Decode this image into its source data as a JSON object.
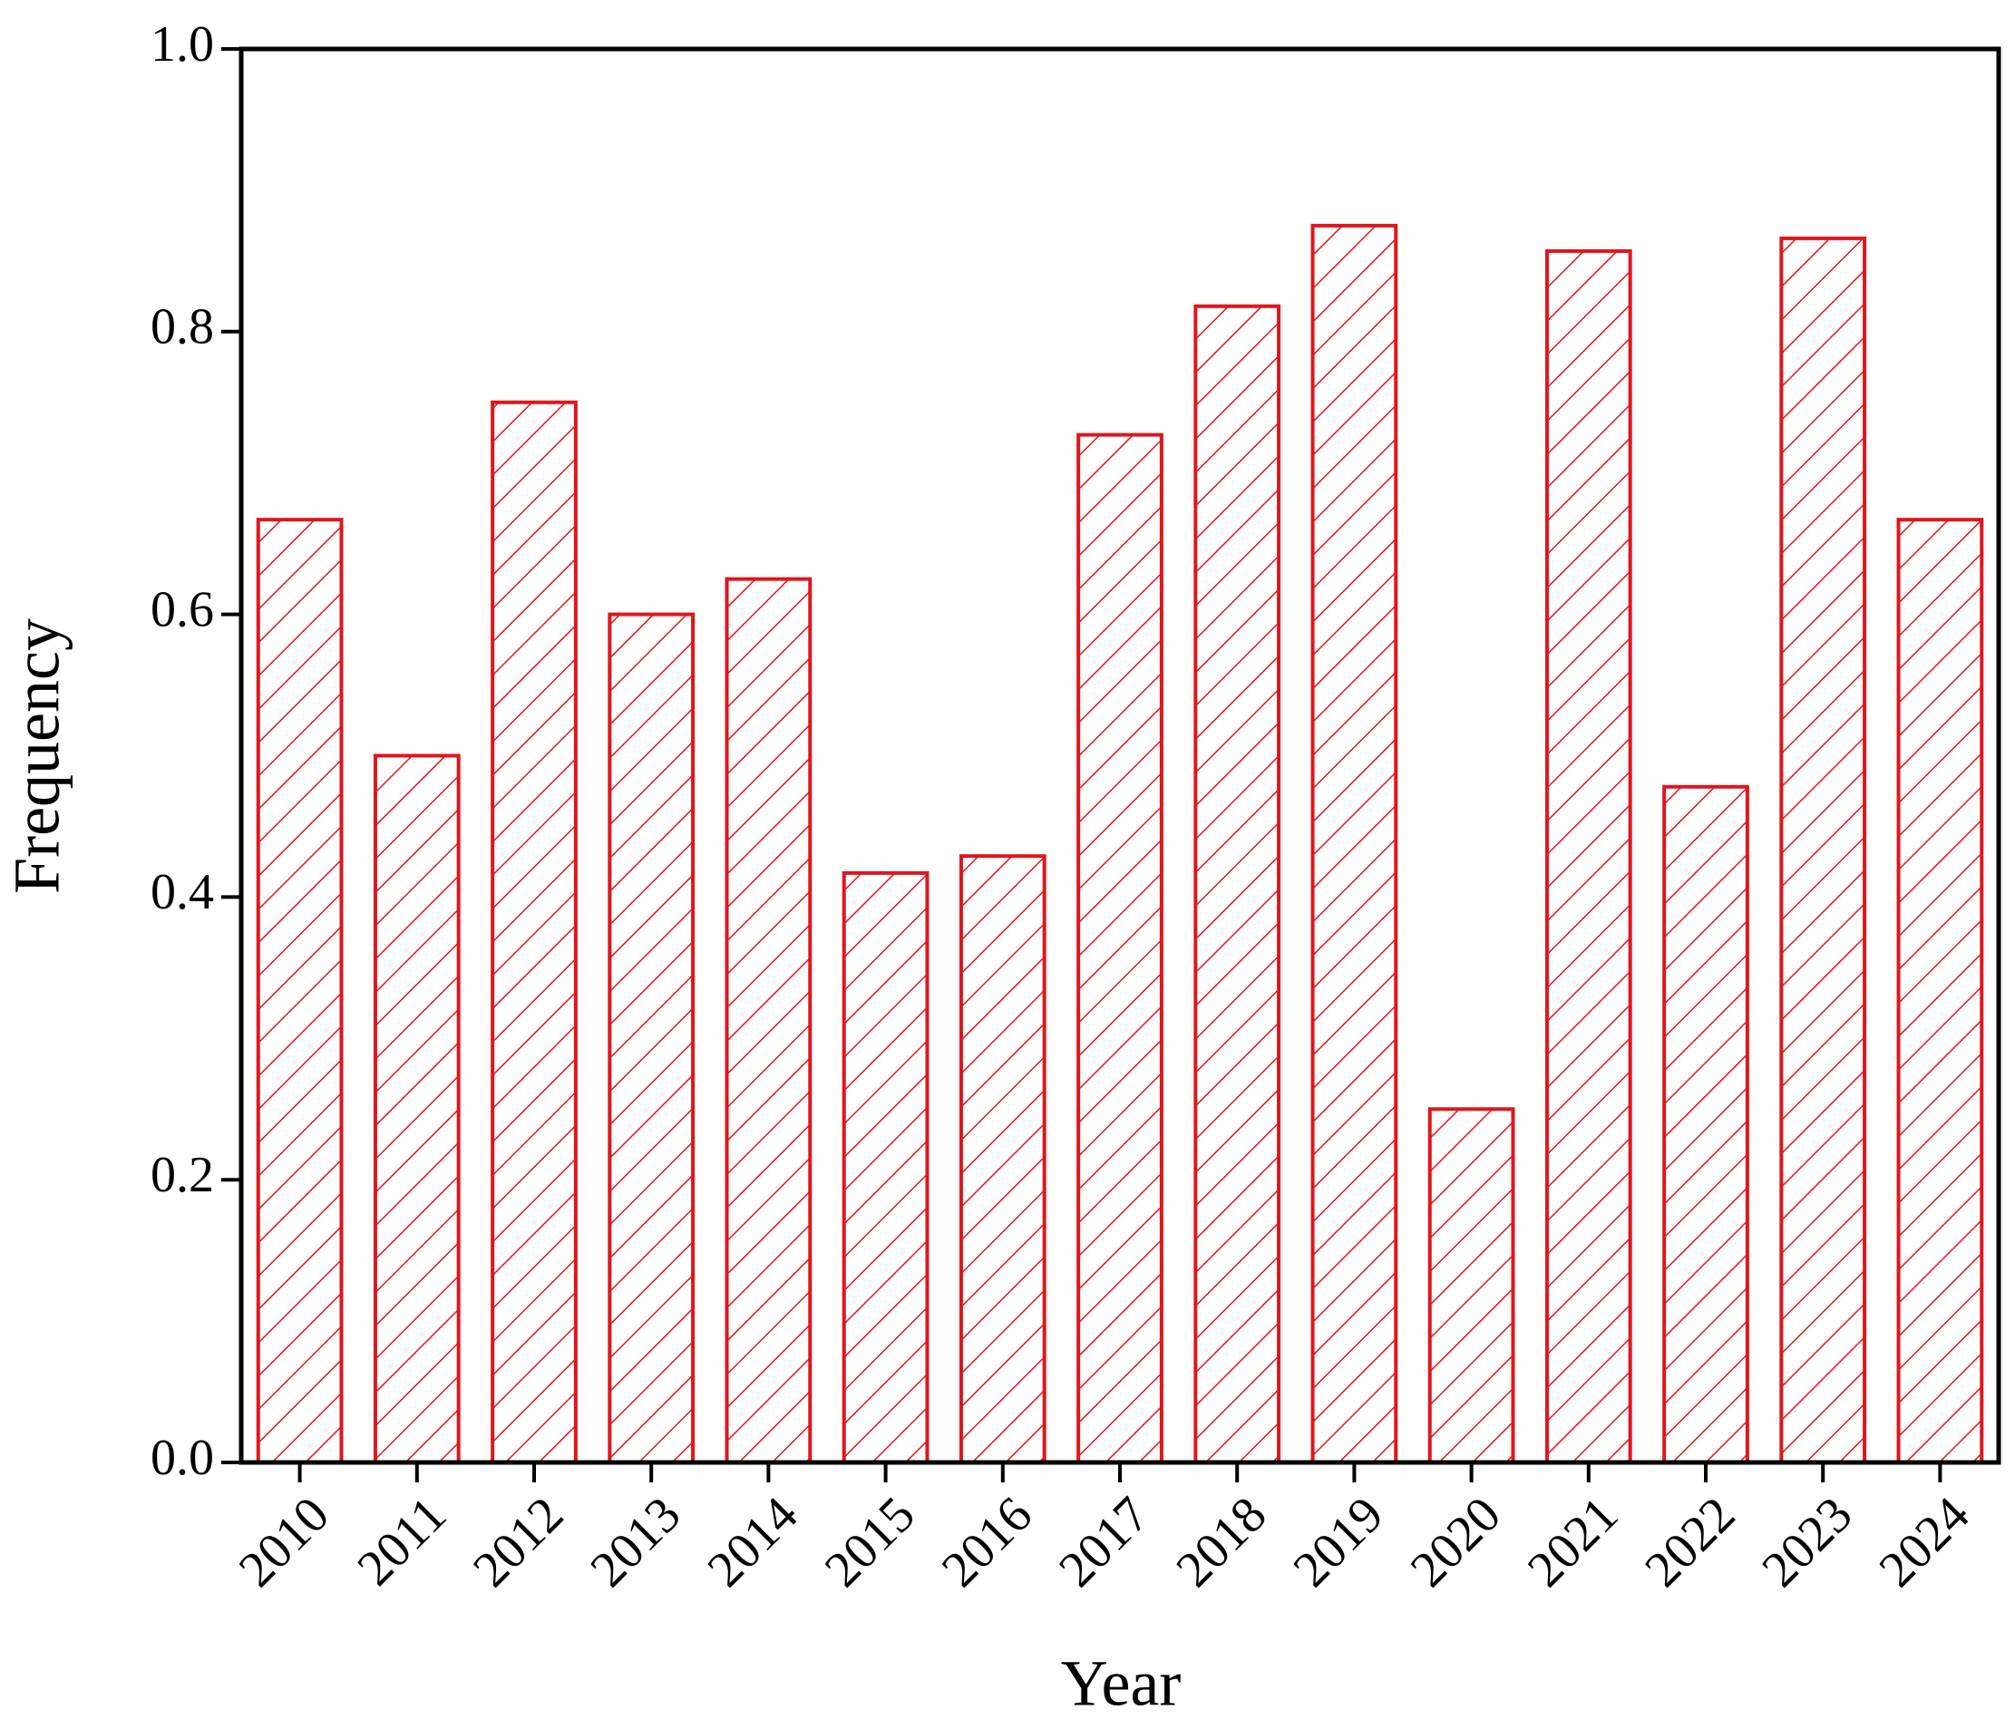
{
  "chart_data": {
    "type": "bar",
    "x_label": "Year",
    "y_label": "Frequency",
    "categories": [
      "2010",
      "2011",
      "2012",
      "2013",
      "2014",
      "2015",
      "2016",
      "2017",
      "2018",
      "2019",
      "2020",
      "2021",
      "2022",
      "2023",
      "2024"
    ],
    "values": [
      0.667,
      0.5,
      0.75,
      0.6,
      0.625,
      0.417,
      0.429,
      0.727,
      0.818,
      0.875,
      0.25,
      0.857,
      0.478,
      0.866,
      0.667
    ],
    "color": "#e0161c",
    "hatch": true,
    "ylim": [
      0,
      1
    ],
    "yticks": [
      {
        "value": 0,
        "label": "0.0"
      },
      0.2,
      0.4,
      0.6,
      0.8,
      {
        "value": 1,
        "label": "1.0"
      }
    ]
  }
}
